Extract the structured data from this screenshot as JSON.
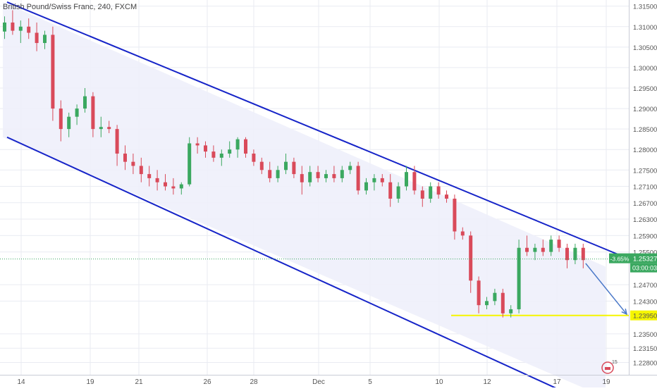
{
  "title": "British Pound/Swiss Franc, 240, FXCM",
  "colors": {
    "up": "#3ba860",
    "down": "#d94a5a",
    "channel_line": "#1624c8",
    "channel_fill": "#eef0fb",
    "support": "#f5f500",
    "arrow": "#4a78c8",
    "price_badge": "#3ba860",
    "axis_text": "#555555",
    "grid": "#e9ebf2"
  },
  "price_badge": {
    "change": "-3.65%",
    "price": "1.25327",
    "countdown": "03:00:03"
  },
  "support_label": "1.23950",
  "watermark": "15",
  "chart_data": {
    "type": "candlestick",
    "symbol": "British Pound/Swiss Franc",
    "timeframe": "240",
    "exchange": "FXCM",
    "ylim": [
      1.225,
      1.3165
    ],
    "yticks": [
      1.315,
      1.31,
      1.305,
      1.3,
      1.295,
      1.29,
      1.285,
      1.28,
      1.275,
      1.271,
      1.267,
      1.263,
      1.259,
      1.255,
      1.247,
      1.243,
      1.235,
      1.2315,
      1.228
    ],
    "xtick_labels": [
      "14",
      "19",
      "21",
      "26",
      "28",
      "Dec",
      "5",
      "10",
      "12",
      "17",
      "19"
    ],
    "last_price": 1.25327,
    "support_level": 1.2395,
    "channel": {
      "upper": [
        [
          0,
          1.316
        ],
        [
          75,
          1.2514
        ]
      ],
      "lower": [
        [
          0,
          1.283
        ],
        [
          75,
          1.2195
        ]
      ]
    },
    "projection": [
      [
        72,
        1.2522
      ],
      [
        75,
        1.2398
      ]
    ],
    "candles": [
      [
        1.3088,
        1.3125,
        1.307,
        1.311
      ],
      [
        1.311,
        1.314,
        1.308,
        1.309
      ],
      [
        1.309,
        1.3115,
        1.306,
        1.31
      ],
      [
        1.31,
        1.312,
        1.307,
        1.3085
      ],
      [
        1.3085,
        1.311,
        1.304,
        1.306
      ],
      [
        1.306,
        1.309,
        1.3045,
        1.308
      ],
      [
        1.308,
        1.31,
        1.287,
        1.29
      ],
      [
        1.29,
        1.292,
        1.282,
        1.285
      ],
      [
        1.285,
        1.289,
        1.283,
        1.288
      ],
      [
        1.288,
        1.291,
        1.286,
        1.29
      ],
      [
        1.29,
        1.295,
        1.289,
        1.293
      ],
      [
        1.293,
        1.294,
        1.283,
        1.285
      ],
      [
        1.285,
        1.288,
        1.283,
        1.2855
      ],
      [
        1.2855,
        1.287,
        1.284,
        1.285
      ],
      [
        1.285,
        1.286,
        1.276,
        1.279
      ],
      [
        1.279,
        1.281,
        1.275,
        1.277
      ],
      [
        1.277,
        1.279,
        1.274,
        1.276
      ],
      [
        1.276,
        1.278,
        1.272,
        1.274
      ],
      [
        1.274,
        1.276,
        1.271,
        1.273
      ],
      [
        1.273,
        1.275,
        1.27,
        1.272
      ],
      [
        1.272,
        1.274,
        1.27,
        1.271
      ],
      [
        1.271,
        1.273,
        1.269,
        1.2705
      ],
      [
        1.2705,
        1.272,
        1.269,
        1.2715
      ],
      [
        1.2715,
        1.283,
        1.271,
        1.2815
      ],
      [
        1.2815,
        1.283,
        1.279,
        1.281
      ],
      [
        1.281,
        1.282,
        1.278,
        1.2795
      ],
      [
        1.2795,
        1.281,
        1.277,
        1.278
      ],
      [
        1.278,
        1.28,
        1.276,
        1.279
      ],
      [
        1.279,
        1.282,
        1.278,
        1.28
      ],
      [
        1.28,
        1.283,
        1.278,
        1.2825
      ],
      [
        1.2825,
        1.283,
        1.278,
        1.279
      ],
      [
        1.279,
        1.28,
        1.276,
        1.277
      ],
      [
        1.277,
        1.278,
        1.274,
        1.275
      ],
      [
        1.275,
        1.277,
        1.272,
        1.273
      ],
      [
        1.273,
        1.276,
        1.272,
        1.275
      ],
      [
        1.275,
        1.279,
        1.274,
        1.277
      ],
      [
        1.277,
        1.278,
        1.273,
        1.274
      ],
      [
        1.274,
        1.276,
        1.269,
        1.272
      ],
      [
        1.272,
        1.276,
        1.271,
        1.2745
      ],
      [
        1.2745,
        1.276,
        1.272,
        1.273
      ],
      [
        1.273,
        1.275,
        1.272,
        1.274
      ],
      [
        1.274,
        1.276,
        1.272,
        1.273
      ],
      [
        1.273,
        1.276,
        1.272,
        1.275
      ],
      [
        1.275,
        1.277,
        1.274,
        1.276
      ],
      [
        1.276,
        1.277,
        1.269,
        1.27
      ],
      [
        1.27,
        1.273,
        1.269,
        1.272
      ],
      [
        1.272,
        1.274,
        1.27,
        1.273
      ],
      [
        1.273,
        1.274,
        1.271,
        1.272
      ],
      [
        1.272,
        1.274,
        1.266,
        1.268
      ],
      [
        1.268,
        1.272,
        1.267,
        1.271
      ],
      [
        1.271,
        1.276,
        1.27,
        1.2745
      ],
      [
        1.2745,
        1.276,
        1.269,
        1.27
      ],
      [
        1.27,
        1.271,
        1.266,
        1.268
      ],
      [
        1.268,
        1.272,
        1.267,
        1.271
      ],
      [
        1.271,
        1.272,
        1.268,
        1.269
      ],
      [
        1.269,
        1.27,
        1.267,
        1.268
      ],
      [
        1.268,
        1.269,
        1.258,
        1.26
      ],
      [
        1.26,
        1.261,
        1.258,
        1.259
      ],
      [
        1.259,
        1.26,
        1.245,
        1.248
      ],
      [
        1.248,
        1.249,
        1.24,
        1.242
      ],
      [
        1.242,
        1.244,
        1.241,
        1.243
      ],
      [
        1.243,
        1.246,
        1.242,
        1.245
      ],
      [
        1.245,
        1.246,
        1.239,
        1.24
      ],
      [
        1.24,
        1.242,
        1.239,
        1.241
      ],
      [
        1.241,
        1.258,
        1.24,
        1.256
      ],
      [
        1.256,
        1.259,
        1.254,
        1.255
      ],
      [
        1.255,
        1.257,
        1.253,
        1.256
      ],
      [
        1.256,
        1.258,
        1.254,
        1.255
      ],
      [
        1.255,
        1.259,
        1.254,
        1.258
      ],
      [
        1.258,
        1.259,
        1.255,
        1.256
      ],
      [
        1.256,
        1.257,
        1.251,
        1.253
      ],
      [
        1.253,
        1.257,
        1.252,
        1.256
      ],
      [
        1.256,
        1.257,
        1.251,
        1.253
      ]
    ]
  }
}
